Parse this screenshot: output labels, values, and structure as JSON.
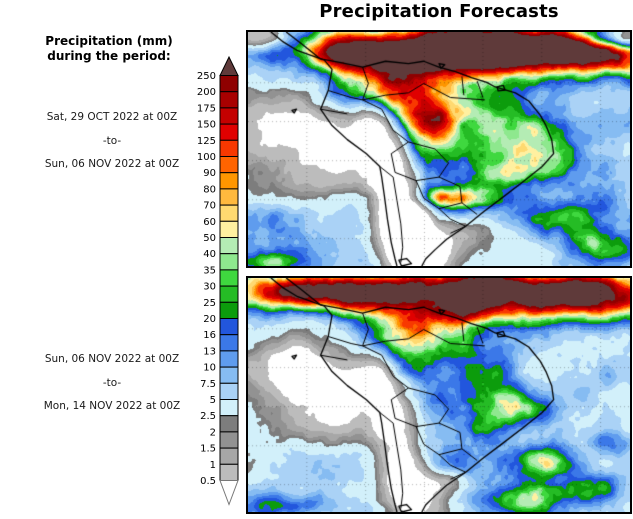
{
  "title": "Precipitation Forecasts",
  "legend": {
    "heading_line1": "Precipitation (mm)",
    "heading_line2": "during the period:",
    "scale": {
      "unit": "mm",
      "thresholds_ascending": [
        0.5,
        1,
        1.5,
        2,
        2.5,
        5,
        7.5,
        10,
        13,
        16,
        20,
        25,
        30,
        35,
        40,
        50,
        60,
        70,
        80,
        90,
        100,
        125,
        150,
        175,
        200,
        250
      ],
      "colors_ascending": [
        "#ffffff",
        "#bcbcbc",
        "#a7a7a7",
        "#929292",
        "#7d7d7d",
        "#d2f0fa",
        "#aad2f6",
        "#86bcf2",
        "#5f9cee",
        "#3b78e8",
        "#2256dd",
        "#0c9c0c",
        "#25bc25",
        "#3fd83f",
        "#8ee88e",
        "#b4ecb4",
        "#fff0a0",
        "#ffd970",
        "#ffb93e",
        "#ff9600",
        "#ff6400",
        "#f83800",
        "#e00000",
        "#c40000",
        "#a80000",
        "#8f0000",
        "#5f3a3a"
      ],
      "above_max_color": "#5f3a3a",
      "below_min_color": "#ffffff",
      "outline_color": "#000000"
    }
  },
  "panels": [
    {
      "id": "top",
      "period_start": "Sat, 29 OCT 2022 at 00Z",
      "period_separator": "-to-",
      "period_end": "Sun, 06 NOV 2022 at 00Z",
      "field": {
        "seed": 3,
        "base": 0.46,
        "noise_amp": 0.45,
        "shapes": [
          [
            0.55,
            0.05,
            0.5,
            0.1,
            0.6
          ],
          [
            0.88,
            0.1,
            0.28,
            0.105,
            0.45
          ],
          [
            0.28,
            0.1,
            0.16,
            0.08,
            0.28
          ],
          [
            0.98,
            0.02,
            0.1,
            0.05,
            -0.55
          ],
          [
            0.02,
            0.02,
            0.07,
            0.05,
            -0.45
          ],
          [
            0.36,
            0.25,
            0.16,
            0.14,
            0.34
          ],
          [
            0.47,
            0.38,
            0.08,
            0.16,
            0.32
          ],
          [
            0.52,
            0.16,
            0.16,
            0.1,
            0.26
          ],
          [
            0.68,
            0.42,
            0.13,
            0.13,
            0.27
          ],
          [
            0.77,
            0.53,
            0.08,
            0.1,
            0.26
          ],
          [
            0.66,
            0.6,
            0.08,
            0.06,
            0.22
          ],
          [
            0.56,
            0.34,
            0.14,
            0.11,
            0.1
          ],
          [
            0.33,
            0.42,
            0.055,
            0.1,
            -0.5
          ],
          [
            0.37,
            0.6,
            0.055,
            0.12,
            -0.55
          ],
          [
            0.4,
            0.78,
            0.06,
            0.14,
            -0.55
          ],
          [
            0.42,
            0.95,
            0.07,
            0.12,
            -0.5
          ],
          [
            0.1,
            0.4,
            0.16,
            0.13,
            -0.42
          ],
          [
            0.24,
            0.5,
            0.14,
            0.14,
            -0.38
          ],
          [
            0.16,
            0.64,
            0.13,
            0.1,
            -0.25
          ],
          [
            0.52,
            0.71,
            0.1,
            0.05,
            0.35
          ],
          [
            0.46,
            0.92,
            0.09,
            0.11,
            -0.5
          ],
          [
            0.43,
            0.79,
            0.05,
            0.06,
            -0.35
          ],
          [
            0.56,
            0.84,
            0.08,
            0.06,
            -0.18
          ],
          [
            0.83,
            0.8,
            0.1,
            0.08,
            0.22
          ],
          [
            0.94,
            0.92,
            0.1,
            0.07,
            0.28
          ],
          [
            0.63,
            0.74,
            0.12,
            0.09,
            0.14
          ],
          [
            0.04,
            0.98,
            0.1,
            0.05,
            0.24
          ]
        ]
      }
    },
    {
      "id": "bottom",
      "period_start": "Sun, 06 NOV 2022 at 00Z",
      "period_separator": "-to-",
      "period_end": "Mon, 14 NOV 2022 at 00Z",
      "field": {
        "seed": 17,
        "base": 0.46,
        "noise_amp": 0.45,
        "shapes": [
          [
            0.5,
            0.04,
            0.45,
            0.09,
            0.55
          ],
          [
            0.88,
            0.09,
            0.26,
            0.11,
            0.52
          ],
          [
            0.12,
            0.06,
            0.12,
            0.08,
            0.36
          ],
          [
            0.3,
            0.08,
            0.12,
            0.08,
            0.28
          ],
          [
            0.45,
            0.2,
            0.18,
            0.12,
            0.22
          ],
          [
            0.56,
            0.14,
            0.1,
            0.07,
            0.27
          ],
          [
            0.52,
            0.45,
            0.26,
            0.22,
            0.16
          ],
          [
            0.42,
            0.32,
            0.12,
            0.12,
            0.18
          ],
          [
            0.7,
            0.55,
            0.09,
            0.07,
            0.28
          ],
          [
            0.63,
            0.63,
            0.07,
            0.06,
            0.18
          ],
          [
            0.33,
            0.42,
            0.055,
            0.1,
            -0.5
          ],
          [
            0.37,
            0.6,
            0.055,
            0.12,
            -0.55
          ],
          [
            0.4,
            0.78,
            0.06,
            0.14,
            -0.55
          ],
          [
            0.42,
            0.95,
            0.07,
            0.12,
            -0.5
          ],
          [
            0.1,
            0.38,
            0.17,
            0.13,
            -0.45
          ],
          [
            0.25,
            0.48,
            0.15,
            0.15,
            -0.42
          ],
          [
            0.15,
            0.62,
            0.13,
            0.1,
            -0.28
          ],
          [
            0.5,
            0.87,
            0.07,
            0.05,
            -0.3
          ],
          [
            0.85,
            0.3,
            0.17,
            0.1,
            -0.1
          ],
          [
            0.78,
            0.78,
            0.09,
            0.07,
            0.3
          ],
          [
            0.89,
            0.9,
            0.11,
            0.07,
            0.3
          ],
          [
            0.95,
            0.7,
            0.07,
            0.06,
            0.18
          ],
          [
            0.7,
            0.95,
            0.12,
            0.06,
            0.2
          ],
          [
            0.12,
            0.97,
            0.1,
            0.05,
            0.2
          ]
        ]
      }
    }
  ],
  "basemap": {
    "coast": [
      [
        [
          0.1,
          0
        ],
        [
          0.14,
          0.05
        ],
        [
          0.19,
          0.115
        ],
        [
          0.24,
          0.13
        ],
        [
          0.3,
          0.15
        ],
        [
          0.36,
          0.125
        ],
        [
          0.42,
          0.135
        ],
        [
          0.46,
          0.125
        ],
        [
          0.5,
          0.15
        ],
        [
          0.545,
          0.17
        ],
        [
          0.585,
          0.195
        ],
        [
          0.625,
          0.215
        ],
        [
          0.647,
          0.235
        ],
        [
          0.7,
          0.26
        ],
        [
          0.735,
          0.295
        ],
        [
          0.765,
          0.355
        ],
        [
          0.78,
          0.4
        ],
        [
          0.795,
          0.46
        ],
        [
          0.8,
          0.52
        ],
        [
          0.77,
          0.575
        ],
        [
          0.72,
          0.64
        ],
        [
          0.664,
          0.71
        ],
        [
          0.615,
          0.77
        ],
        [
          0.57,
          0.83
        ],
        [
          0.52,
          0.886
        ],
        [
          0.49,
          0.93
        ],
        [
          0.465,
          0.97
        ],
        [
          0.455,
          1.0
        ]
      ],
      [
        [
          0.06,
          0
        ],
        [
          0.09,
          0.04
        ],
        [
          0.13,
          0.08
        ],
        [
          0.2,
          0.12
        ],
        [
          0.22,
          0.16
        ],
        [
          0.21,
          0.25
        ],
        [
          0.19,
          0.33
        ],
        [
          0.22,
          0.4
        ],
        [
          0.26,
          0.46
        ],
        [
          0.31,
          0.52
        ],
        [
          0.345,
          0.575
        ],
        [
          0.35,
          0.62
        ],
        [
          0.357,
          0.7
        ],
        [
          0.365,
          0.8
        ],
        [
          0.375,
          0.9
        ],
        [
          0.385,
          0.97
        ],
        [
          0.39,
          1.0
        ]
      ]
    ],
    "islands": [
      [
        [
          0.395,
          0.975
        ],
        [
          0.415,
          0.968
        ],
        [
          0.428,
          0.99
        ],
        [
          0.402,
          1.0
        ],
        [
          0.395,
          0.975
        ]
      ],
      [
        [
          0.5,
          0.135
        ],
        [
          0.515,
          0.14
        ],
        [
          0.505,
          0.155
        ],
        [
          0.5,
          0.135
        ]
      ],
      [
        [
          0.652,
          0.235
        ],
        [
          0.668,
          0.228
        ],
        [
          0.673,
          0.248
        ],
        [
          0.655,
          0.252
        ],
        [
          0.652,
          0.235
        ]
      ],
      [
        [
          0.115,
          0.335
        ],
        [
          0.127,
          0.33
        ],
        [
          0.121,
          0.346
        ],
        [
          0.115,
          0.335
        ]
      ]
    ],
    "borders": [
      [
        [
          0.3,
          0.15
        ],
        [
          0.315,
          0.22
        ],
        [
          0.3,
          0.29
        ]
      ],
      [
        [
          0.19,
          0.33
        ],
        [
          0.26,
          0.35
        ]
      ],
      [
        [
          0.21,
          0.25
        ],
        [
          0.27,
          0.28
        ],
        [
          0.3,
          0.29
        ],
        [
          0.35,
          0.33
        ]
      ],
      [
        [
          0.35,
          0.33
        ],
        [
          0.38,
          0.42
        ],
        [
          0.42,
          0.47
        ]
      ],
      [
        [
          0.3,
          0.29
        ],
        [
          0.36,
          0.27
        ],
        [
          0.42,
          0.26
        ],
        [
          0.46,
          0.22
        ]
      ],
      [
        [
          0.46,
          0.22
        ],
        [
          0.53,
          0.28
        ],
        [
          0.62,
          0.29
        ]
      ],
      [
        [
          0.56,
          0.19
        ],
        [
          0.565,
          0.27
        ]
      ],
      [
        [
          0.6,
          0.21
        ],
        [
          0.615,
          0.28
        ]
      ],
      [
        [
          0.42,
          0.47
        ],
        [
          0.49,
          0.5
        ],
        [
          0.525,
          0.56
        ],
        [
          0.5,
          0.62
        ],
        [
          0.44,
          0.635
        ],
        [
          0.385,
          0.6
        ],
        [
          0.375,
          0.52
        ],
        [
          0.42,
          0.47
        ]
      ],
      [
        [
          0.5,
          0.62
        ],
        [
          0.555,
          0.66
        ],
        [
          0.56,
          0.73
        ],
        [
          0.5,
          0.755
        ],
        [
          0.46,
          0.71
        ],
        [
          0.44,
          0.635
        ]
      ],
      [
        [
          0.56,
          0.73
        ],
        [
          0.6,
          0.78
        ]
      ],
      [
        [
          0.5,
          0.755
        ],
        [
          0.53,
          0.8
        ],
        [
          0.57,
          0.83
        ]
      ],
      [
        [
          0.57,
          0.83
        ],
        [
          0.53,
          0.86
        ]
      ],
      [
        [
          0.345,
          0.575
        ],
        [
          0.38,
          0.62
        ],
        [
          0.39,
          0.72
        ],
        [
          0.4,
          0.82
        ],
        [
          0.405,
          0.92
        ],
        [
          0.4,
          0.985
        ]
      ]
    ],
    "graticule": {
      "lat_v": [
        0.217,
        0.383,
        0.55,
        0.717,
        0.883
      ],
      "lon_u": [
        0.154,
        0.308,
        0.462,
        0.615,
        0.769,
        0.923
      ]
    }
  }
}
